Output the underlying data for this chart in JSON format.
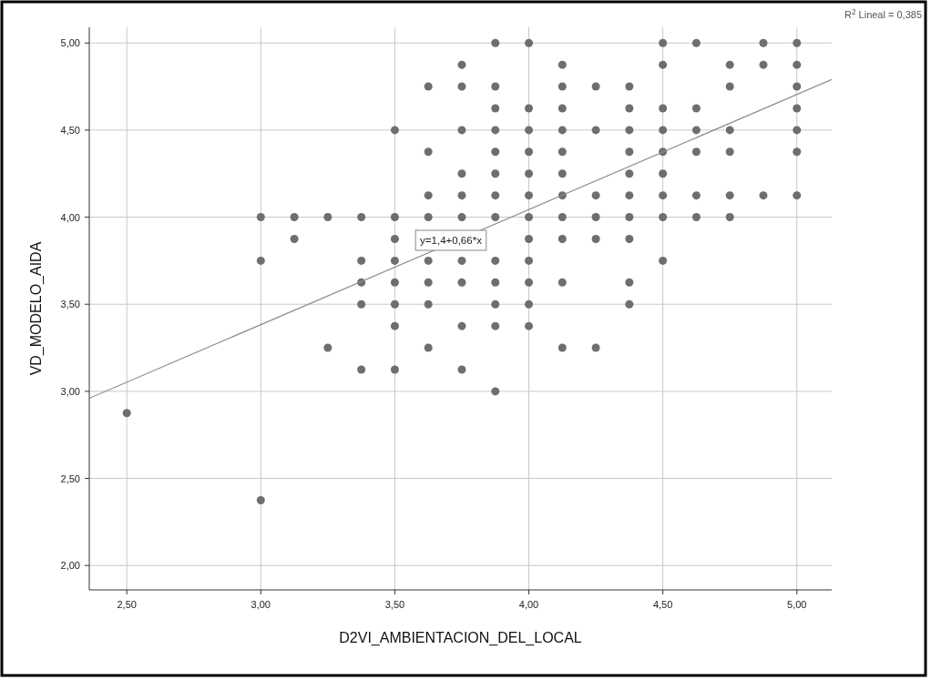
{
  "chart_data": {
    "type": "scatter",
    "xlabel": "D2VI_AMBIENTACION_DEL_LOCAL",
    "ylabel": "VD_MODELO_AIDA",
    "xlim": [
      2.36,
      5.13
    ],
    "ylim": [
      1.86,
      5.09
    ],
    "xticks": [
      {
        "value": 2.5,
        "label": "2,50"
      },
      {
        "value": 3,
        "label": "3,00"
      },
      {
        "value": 3.5,
        "label": "3,50"
      },
      {
        "value": 4,
        "label": "4,00"
      },
      {
        "value": 4.5,
        "label": "4,50"
      },
      {
        "value": 5,
        "label": "5,00"
      }
    ],
    "yticks": [
      {
        "value": 2,
        "label": "2,00"
      },
      {
        "value": 2.5,
        "label": "2,50"
      },
      {
        "value": 3,
        "label": "3,00"
      },
      {
        "value": 3.5,
        "label": "3,50"
      },
      {
        "value": 4,
        "label": "4,00"
      },
      {
        "value": 4.5,
        "label": "4,50"
      },
      {
        "value": 5,
        "label": "5,00"
      }
    ],
    "grid": true,
    "series": [
      {
        "marker": "circle",
        "color": "#6e6e6e",
        "x": [
          2.5,
          3,
          3,
          3,
          3.125,
          3.125,
          3.25,
          3.25,
          3.375,
          3.375,
          3.375,
          3.375,
          3.375,
          3.5,
          3.5,
          3.5,
          3.5,
          3.5,
          3.5,
          3.5,
          3.5,
          3.625,
          3.625,
          3.625,
          3.625,
          3.625,
          3.625,
          3.625,
          3.625,
          3.75,
          3.75,
          3.75,
          3.75,
          3.75,
          3.75,
          3.75,
          3.75,
          3.75,
          3.75,
          3.875,
          3.875,
          3.875,
          3.875,
          3.875,
          3.875,
          3.875,
          3.875,
          3.875,
          3.875,
          3.875,
          3.875,
          3.875,
          4,
          4,
          4,
          4,
          4,
          4,
          4,
          4,
          4,
          4,
          4,
          4,
          4.125,
          4.125,
          4.125,
          4.125,
          4.125,
          4.125,
          4.125,
          4.125,
          4.125,
          4.125,
          4.125,
          4.25,
          4.25,
          4.25,
          4.25,
          4.25,
          4.25,
          4.375,
          4.375,
          4.375,
          4.375,
          4.375,
          4.375,
          4.375,
          4.375,
          4.375,
          4.375,
          4.5,
          4.5,
          4.5,
          4.5,
          4.5,
          4.5,
          4.5,
          4.5,
          4.5,
          4.625,
          4.625,
          4.625,
          4.625,
          4.625,
          4.625,
          4.75,
          4.75,
          4.75,
          4.75,
          4.75,
          4.75,
          4.875,
          4.875,
          4.875,
          5,
          5,
          5,
          5,
          5,
          5,
          5
        ],
        "values": [
          2.875,
          4,
          3.75,
          2.375,
          4,
          3.875,
          4,
          3.25,
          4,
          3.75,
          3.625,
          3.5,
          3.125,
          4.5,
          4,
          3.875,
          3.75,
          3.625,
          3.5,
          3.375,
          3.125,
          4.75,
          4.375,
          4.125,
          4,
          3.75,
          3.625,
          3.5,
          3.25,
          4.875,
          4.75,
          4.5,
          4.25,
          4.125,
          4,
          3.75,
          3.625,
          3.375,
          3.125,
          5,
          4.75,
          4.625,
          4.5,
          4.375,
          4.25,
          4.125,
          4,
          3.75,
          3.625,
          3.5,
          3.375,
          3,
          5,
          4.625,
          4.5,
          4.375,
          4.25,
          4.125,
          4,
          3.875,
          3.75,
          3.625,
          3.5,
          3.375,
          4.875,
          4.75,
          4.625,
          4.5,
          4.375,
          4.25,
          4.125,
          4,
          3.875,
          3.625,
          3.25,
          4.75,
          4.5,
          4.125,
          4,
          3.875,
          3.25,
          4.75,
          4.625,
          4.5,
          4.375,
          4.25,
          4.125,
          4,
          3.875,
          3.625,
          3.5,
          5,
          4.875,
          4.625,
          4.5,
          4.375,
          4.25,
          4.125,
          4,
          3.75,
          5,
          4.625,
          4.5,
          4.375,
          4.125,
          4,
          4.875,
          4.75,
          4.5,
          4.375,
          4.125,
          4,
          5,
          4.875,
          4.125,
          5,
          4.875,
          4.75,
          4.625,
          4.5,
          4.375,
          4.125
        ]
      },
      {
        "type": "line",
        "color": "#8c8c8c",
        "x": [
          2.36,
          5.13
        ],
        "values": [
          2.96,
          4.79
        ]
      }
    ],
    "annotations": [
      "R$^{2}$ Lineal = 0,385",
      "y=1,4+0,66*x"
    ]
  }
}
